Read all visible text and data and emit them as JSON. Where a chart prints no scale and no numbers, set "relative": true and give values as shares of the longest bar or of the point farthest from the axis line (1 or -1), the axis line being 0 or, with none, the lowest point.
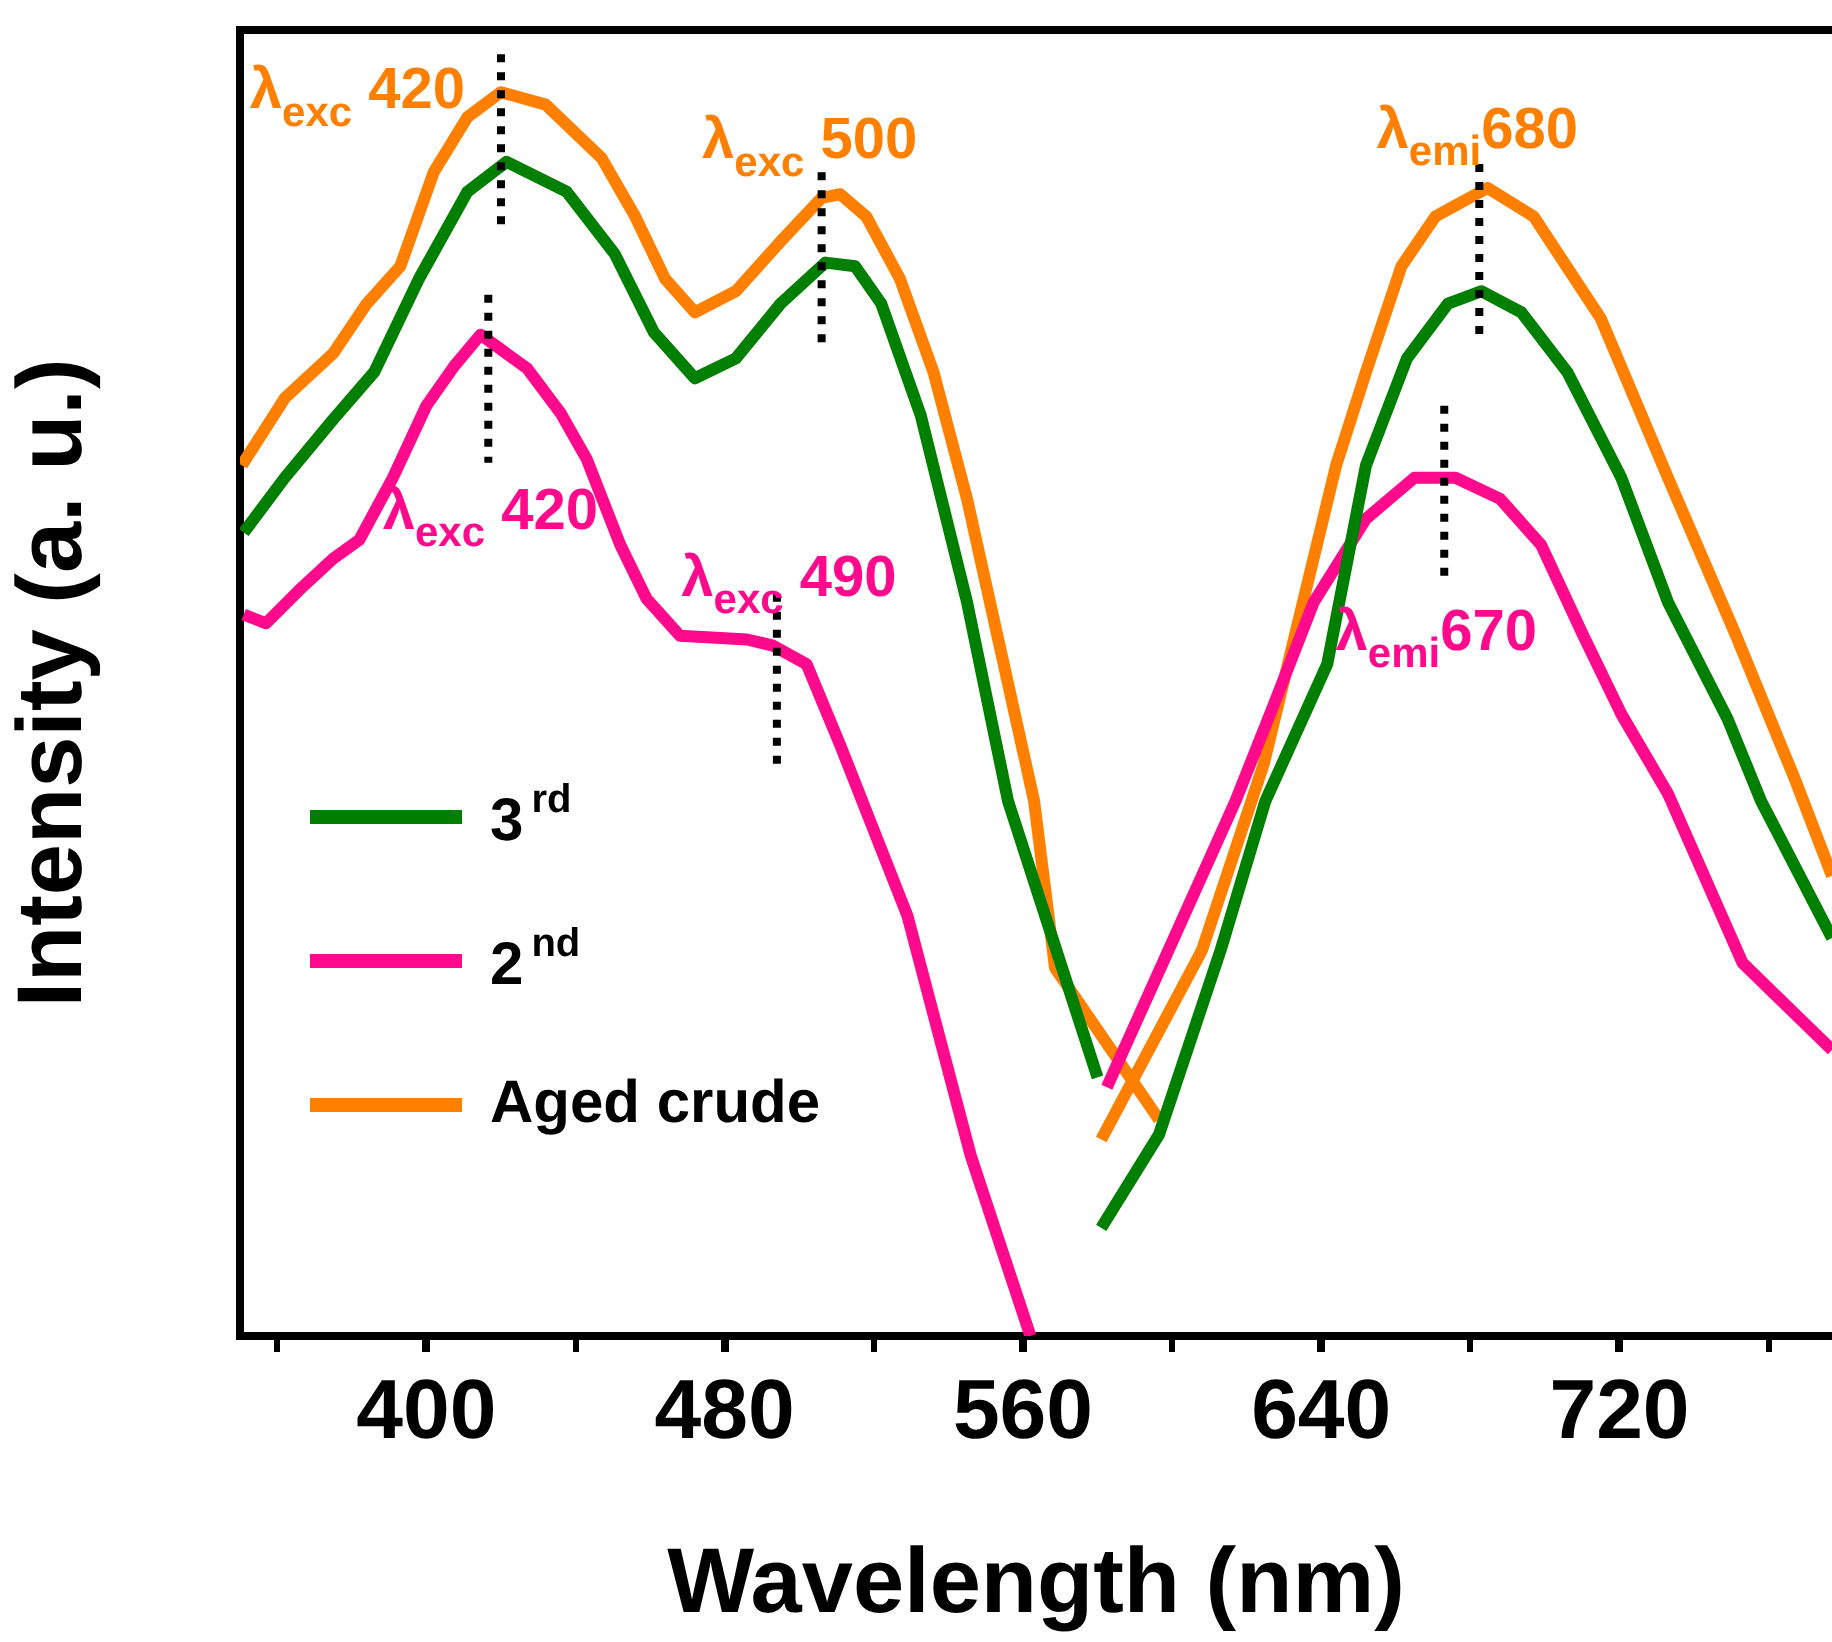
{
  "chart_data": {
    "type": "line",
    "relative": true,
    "xlabel": "Wavelength (nm)",
    "ylabel": "Intensity (a. u.)",
    "legend": "left",
    "xlim": [
      350,
      777
    ],
    "xticks": [
      {
        "value": 360,
        "label": null
      },
      400,
      {
        "value": 440,
        "label": null
      },
      480,
      {
        "value": 520,
        "label": null
      },
      560,
      {
        "value": 600,
        "label": null
      },
      640,
      {
        "value": 680,
        "label": null
      },
      720,
      {
        "value": 760,
        "label": null
      }
    ],
    "series": [
      {
        "name": "3$^{rd}$",
        "color": "#007f00",
        "x": [
          351,
          362,
          375,
          386,
          398,
          411,
          421.5,
          437.6,
          450.5,
          461,
          472,
          483,
          495,
          507,
          515,
          522,
          532.6,
          545,
          556,
          580,
          580.5,
          581,
          596.5,
          613,
          625,
          641.6,
          652,
          663,
          674,
          683,
          693.7,
          706,
          720.5,
          733,
          749,
          758,
          777
        ],
        "values": [
          0.646,
          0.69,
          0.737,
          0.775,
          0.85,
          0.92,
          0.944,
          0.92,
          0.87,
          0.807,
          0.77,
          0.786,
          0.83,
          0.863,
          0.86,
          0.83,
          0.74,
          0.59,
          0.43,
          0.208,
          null,
          0.087,
          0.162,
          0.31,
          0.43,
          0.54,
          0.7,
          0.786,
          0.83,
          0.84,
          0.823,
          0.775,
          0.69,
          0.59,
          0.496,
          0.43,
          0.32
        ]
      },
      {
        "name": "2$^{nd}$",
        "color": "#ff0a8c",
        "x": [
          351,
          357,
          366,
          375,
          382,
          391,
          400,
          407.5,
          414.5,
          427,
          436,
          443,
          452,
          459,
          468,
          486,
          493,
          502,
          511,
          529,
          546,
          562,
          572,
          582.5,
          599,
          617,
          627.6,
          638,
          652,
          665,
          676,
          688,
          699,
          710,
          720.5,
          733,
          753,
          777
        ],
        "values": [
          0.58,
          0.573,
          0.6,
          0.625,
          0.64,
          0.69,
          0.748,
          0.78,
          0.805,
          0.778,
          0.742,
          0.705,
          0.636,
          0.593,
          0.563,
          0.56,
          0.555,
          0.54,
          0.475,
          0.338,
          0.145,
          0,
          null,
          0.2,
          0.31,
          0.43,
          0.51,
          0.59,
          0.657,
          0.69,
          0.69,
          0.673,
          0.636,
          0.565,
          0.5,
          0.436,
          0.3,
          0.23
        ]
      },
      {
        "name": "Aged crude",
        "color": "#ff8000",
        "x": [
          350.5,
          362,
          375,
          384,
          393,
          402,
          411,
          420,
          432,
          447,
          456,
          464,
          472,
          483,
          495,
          506,
          511,
          518,
          527,
          536,
          545,
          563,
          568.6,
          596.5,
          590,
          581,
          608,
          624.6,
          644,
          652,
          661.5,
          670.6,
          684.6,
          697,
          715,
          733,
          751,
          767,
          777
        ],
        "values": [
          0.7,
          0.754,
          0.79,
          0.83,
          0.86,
          0.936,
          0.98,
          1,
          0.99,
          0.947,
          0.9,
          0.85,
          0.823,
          0.84,
          0.88,
          0.915,
          0.918,
          0.9,
          0.85,
          0.775,
          0.673,
          0.43,
          0.296,
          0.174,
          null,
          0.158,
          0.31,
          0.46,
          0.7,
          0.775,
          0.86,
          0.9,
          0.923,
          0.9,
          0.818,
          0.69,
          0.565,
          0.448,
          0.37
        ]
      }
    ],
    "annotations": [
      {
        "text": "λ$_{exc}$ 420",
        "x": 420,
        "y": 1
      },
      {
        "text": "λ$_{exc}$ 500",
        "x": 506,
        "y": 0.918
      },
      {
        "text": "λ$_{exc}$ 420",
        "x": 416.6,
        "y": 0.805
      },
      {
        "text": "λ$_{exc}$ 490",
        "x": 494,
        "y": 0.555
      },
      {
        "text": "λ$_{emi}$680",
        "x": 682.4,
        "y": 0.923
      },
      {
        "text": "λ$_{emi}$670",
        "x": 673,
        "y": 0.69
      }
    ]
  }
}
